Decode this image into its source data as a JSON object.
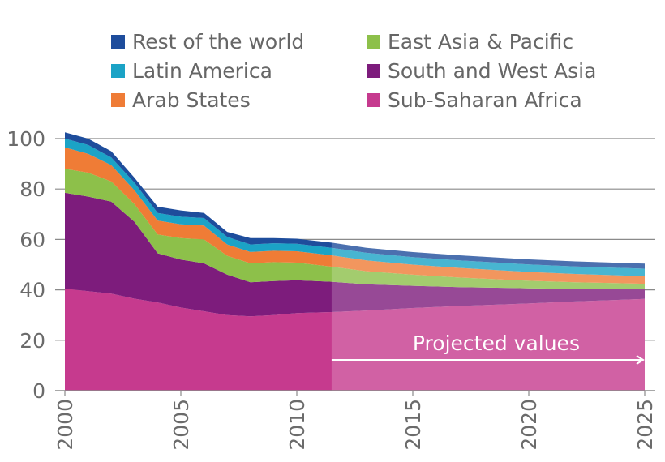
{
  "chart_data": {
    "type": "area",
    "stacked": true,
    "title": "",
    "xlabel": "",
    "ylabel": "",
    "xlim": [
      2000,
      2025
    ],
    "ylim": [
      0,
      100
    ],
    "yticks": [
      0,
      20,
      40,
      60,
      80,
      100
    ],
    "xticks": [
      2000,
      2005,
      2010,
      2015,
      2020,
      2025
    ],
    "grid": "horizontal",
    "legend_position": "top",
    "projection_start_year": 2011.5,
    "projection_label": "Projected values",
    "x": [
      2000,
      2001,
      2002,
      2003,
      2004,
      2005,
      2006,
      2007,
      2008,
      2009,
      2010,
      2011.5,
      2013,
      2015,
      2017,
      2020,
      2022,
      2025
    ],
    "series": [
      {
        "name": "Sub-Saharan Africa",
        "color": "#c63a8e",
        "values": [
          40.5,
          39.5,
          38.5,
          36.5,
          35,
          33,
          31.5,
          30,
          29.5,
          30,
          30.8,
          31.2,
          31.8,
          32.8,
          33.6,
          34.6,
          35.4,
          36.4
        ]
      },
      {
        "name": "South and West Asia",
        "color": "#7d1c7c",
        "values": [
          38,
          37.5,
          36.5,
          30.5,
          19.5,
          19,
          19,
          16,
          13.5,
          13.5,
          13,
          12,
          10.4,
          8.8,
          7.5,
          6,
          5,
          4
        ]
      },
      {
        "name": "East Asia & Pacific",
        "color": "#8dc04a",
        "values": [
          9.5,
          9.5,
          8,
          7,
          7.5,
          8.5,
          9.5,
          7.5,
          7.5,
          7.5,
          7,
          6,
          5.2,
          4.4,
          3.8,
          3,
          2.6,
          2
        ]
      },
      {
        "name": "Arab States",
        "color": "#ef7c36",
        "values": [
          8.5,
          7.5,
          6.5,
          5.5,
          5.5,
          5.5,
          5.5,
          4.5,
          4.5,
          4.5,
          4.5,
          4.5,
          4.3,
          4,
          3.8,
          3.5,
          3.3,
          3
        ]
      },
      {
        "name": "Latin America",
        "color": "#1ba3c6",
        "values": [
          3.5,
          3.5,
          3,
          3,
          3,
          3,
          3,
          3,
          3,
          3,
          3,
          3,
          3,
          3,
          3,
          3,
          3,
          3
        ]
      },
      {
        "name": "Rest of the world",
        "color": "#1e4d9c",
        "values": [
          2.5,
          2.5,
          2.5,
          2,
          2.5,
          2.5,
          2,
          2,
          2.5,
          2,
          2,
          2,
          2,
          2,
          2,
          2,
          2,
          2
        ]
      }
    ],
    "legend_order": [
      "Rest of the world",
      "East Asia & Pacific",
      "Latin America",
      "South and West Asia",
      "Arab States",
      "Sub-Saharan Africa"
    ]
  }
}
